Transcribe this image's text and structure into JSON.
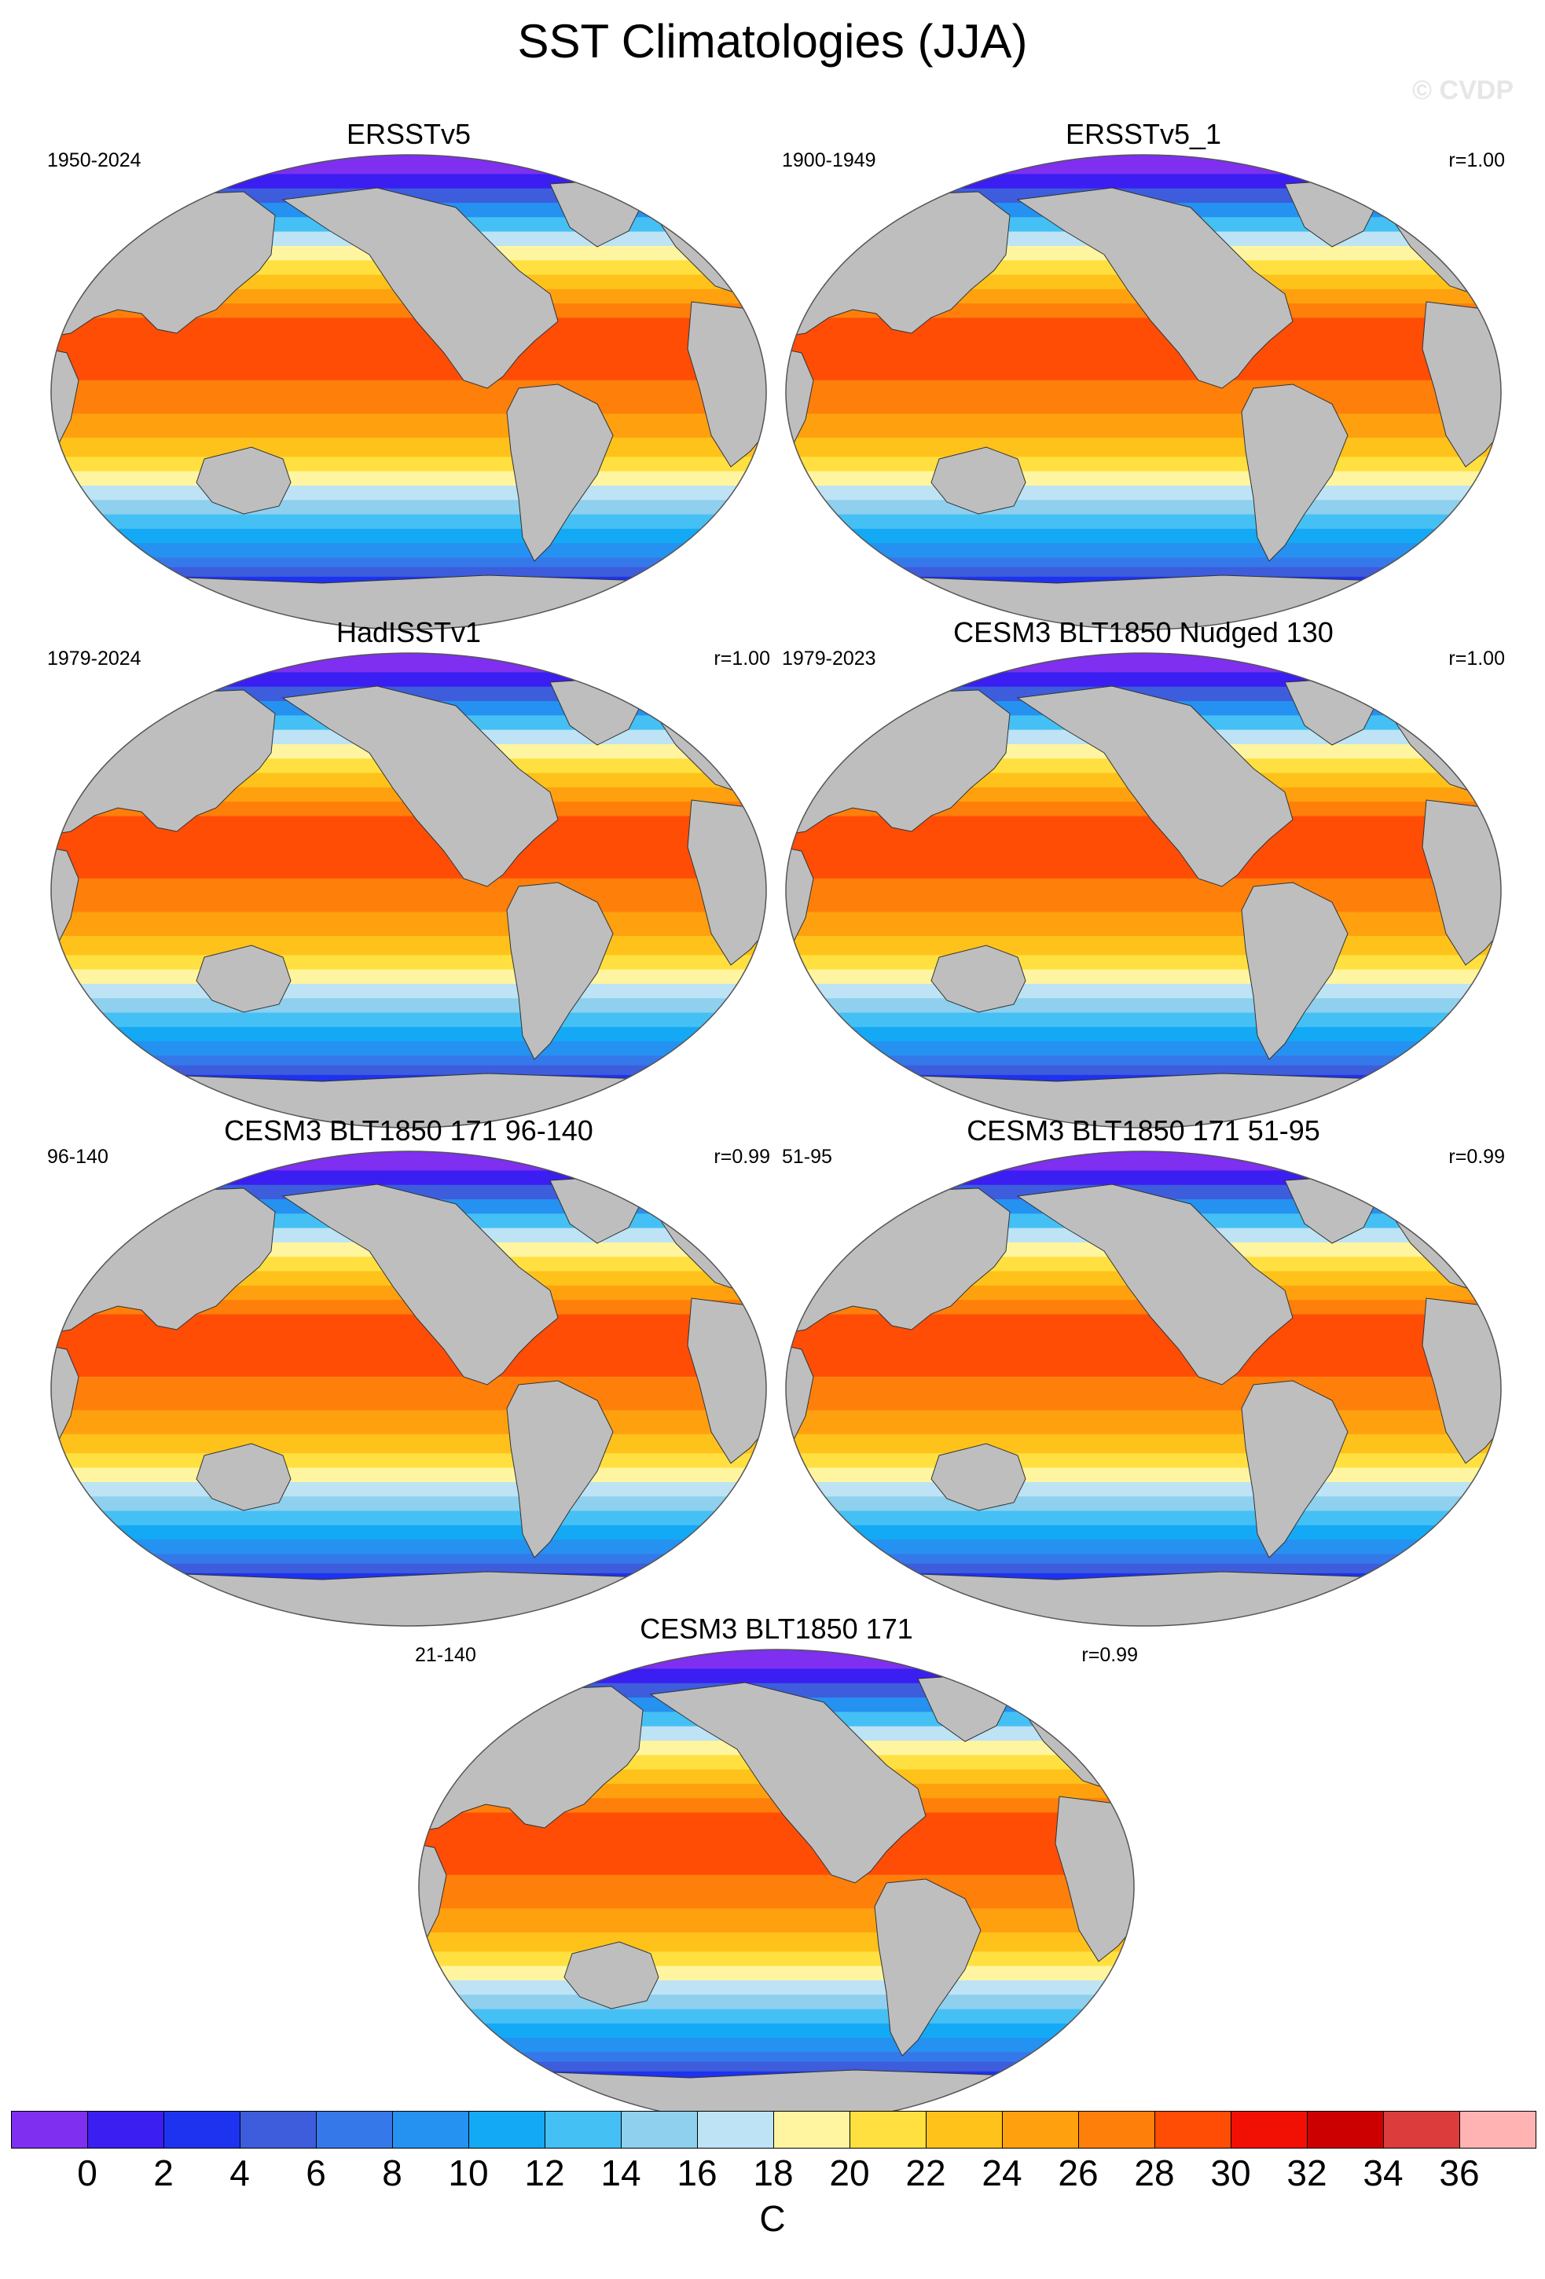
{
  "title": "SST Climatologies (JJA)",
  "watermark": "© CVDP",
  "panels": [
    {
      "title": "ERSSTv5",
      "period": "1950-2024",
      "r": ""
    },
    {
      "title": "ERSSTv5_1",
      "period": "1900-1949",
      "r": "r=1.00"
    },
    {
      "title": "HadISSTv1",
      "period": "1979-2024",
      "r": "r=1.00"
    },
    {
      "title": "CESM3 BLT1850 Nudged 130",
      "period": "1979-2023",
      "r": "r=1.00"
    },
    {
      "title": "CESM3 BLT1850 171 96-140",
      "period": "96-140",
      "r": "r=0.99"
    },
    {
      "title": "CESM3 BLT1850 171 51-95",
      "period": "51-95",
      "r": "r=0.99"
    },
    {
      "title": "CESM3 BLT1850 171",
      "period": "21-140",
      "r": "r=0.99"
    }
  ],
  "colorbar": {
    "units": "C",
    "tick_labels": [
      "0",
      "2",
      "4",
      "6",
      "8",
      "10",
      "12",
      "14",
      "16",
      "18",
      "20",
      "22",
      "24",
      "26",
      "28",
      "30",
      "32",
      "34",
      "36"
    ],
    "colors": [
      "#7f2ff0",
      "#3a1ef2",
      "#1d33f0",
      "#3d5ddc",
      "#3578ea",
      "#2591f0",
      "#14a9f5",
      "#45c0f5",
      "#8ed0ee",
      "#bde3f5",
      "#fff5a0",
      "#ffe040",
      "#ffc21a",
      "#ffa10f",
      "#ff7f0b",
      "#ff4d06",
      "#f21005",
      "#cc0000",
      "#dc3c3c",
      "#ffb3b3"
    ]
  },
  "land_color": "#bebebe"
}
